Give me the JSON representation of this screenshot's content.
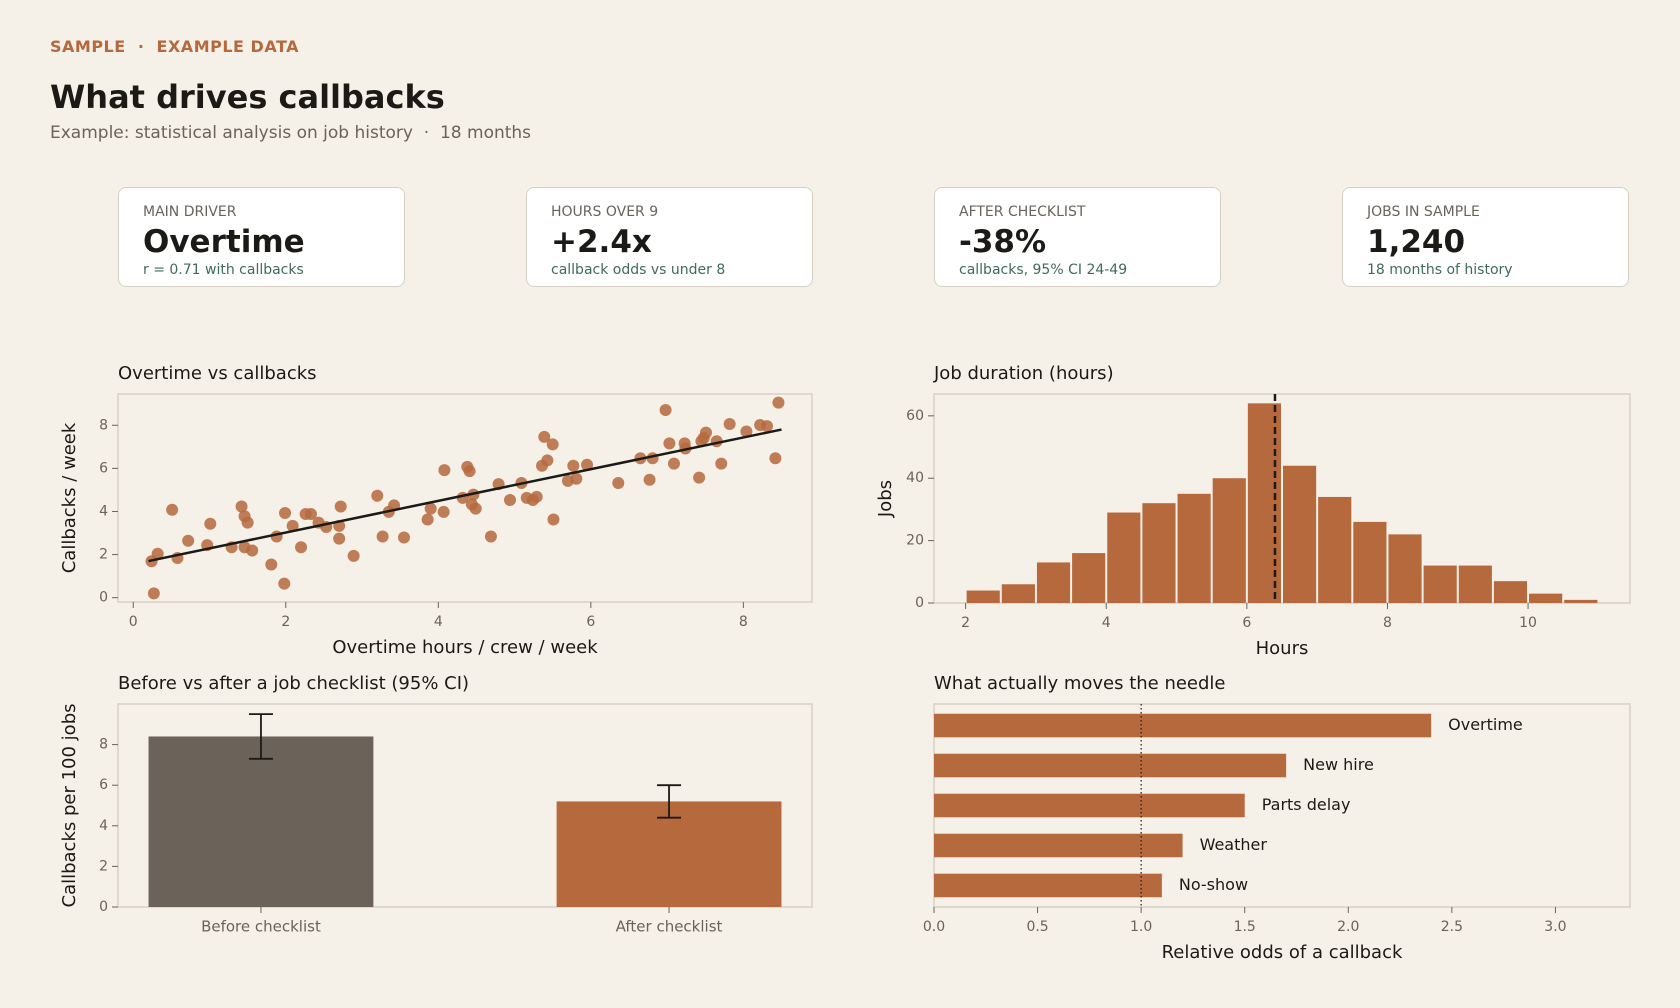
{
  "header": {
    "eyebrow": "SAMPLE  ·  EXAMPLE DATA",
    "title": "What drives callbacks",
    "subtitle": "Example: statistical analysis on job history  ·  18 months"
  },
  "cards": [
    {
      "label": "MAIN DRIVER",
      "value": "Overtime",
      "note": "r = 0.71 with callbacks"
    },
    {
      "label": "HOURS OVER 9",
      "value": "+2.4x",
      "note": "callback odds vs under 8"
    },
    {
      "label": "AFTER CHECKLIST",
      "value": "-38%",
      "note": "callbacks, 95% CI 24-49"
    },
    {
      "label": "JOBS IN SAMPLE",
      "value": "1,240",
      "note": "18 months of history"
    }
  ],
  "chart_data": [
    {
      "type": "scatter",
      "title": "Overtime vs callbacks",
      "xlabel": "Overtime hours / crew / week",
      "ylabel": "Callbacks / week",
      "color": "#b5693d",
      "x": [
        0.24,
        0.32,
        0.27,
        0.51,
        0.58,
        0.72,
        0.97,
        1.01,
        1.29,
        1.42,
        1.46,
        1.5,
        1.46,
        1.56,
        1.81,
        1.88,
        1.98,
        1.99,
        2.09,
        2.2,
        2.26,
        2.33,
        2.43,
        2.53,
        2.7,
        2.72,
        2.7,
        2.89,
        3.2,
        3.27,
        3.35,
        3.42,
        3.55,
        3.86,
        3.9,
        4.07,
        4.08,
        4.32,
        4.38,
        4.41,
        4.44,
        4.46,
        4.49,
        4.69,
        4.79,
        4.94,
        5.09,
        5.16,
        5.24,
        5.29,
        5.36,
        5.39,
        5.43,
        5.5,
        5.51,
        5.7,
        5.77,
        5.81,
        5.95,
        6.36,
        6.65,
        6.77,
        6.81,
        6.98,
        7.03,
        7.09,
        7.23,
        7.24,
        7.42,
        7.45,
        7.48,
        7.51,
        7.65,
        7.71,
        7.82,
        8.04,
        8.22,
        8.31,
        8.42,
        8.46
      ],
      "values": [
        1.69,
        2.04,
        0.2,
        4.08,
        1.84,
        2.64,
        2.44,
        3.43,
        2.34,
        4.23,
        3.78,
        3.48,
        2.34,
        2.19,
        1.54,
        2.84,
        0.65,
        3.93,
        3.33,
        2.34,
        3.88,
        3.88,
        3.48,
        3.28,
        3.33,
        4.23,
        2.74,
        1.94,
        4.73,
        2.84,
        3.98,
        4.28,
        2.79,
        3.63,
        4.13,
        3.98,
        5.92,
        4.63,
        6.07,
        5.87,
        4.33,
        4.78,
        4.13,
        2.84,
        5.27,
        4.53,
        5.32,
        4.63,
        4.53,
        4.68,
        6.12,
        7.46,
        6.37,
        7.11,
        3.63,
        5.42,
        6.12,
        5.52,
        6.17,
        5.32,
        6.47,
        5.47,
        6.47,
        8.71,
        7.16,
        6.22,
        7.16,
        6.92,
        5.57,
        7.26,
        7.41,
        7.66,
        7.26,
        6.22,
        8.06,
        7.71,
        8.01,
        7.96,
        6.47,
        9.05
      ],
      "trendline": {
        "x": [
          0.2,
          8.5
        ],
        "values": [
          1.7,
          7.8
        ]
      },
      "xlim": [
        -0.2,
        8.9
      ],
      "ylim": [
        -0.2,
        9.45
      ],
      "xticks": [
        0,
        2,
        4,
        6,
        8
      ],
      "yticks": [
        0,
        2,
        4,
        6,
        8
      ]
    },
    {
      "type": "histogram",
      "title": "Job duration (hours)",
      "xlabel": "Hours",
      "ylabel": "Jobs",
      "color": "#b5693d",
      "bins": [
        2,
        2.5,
        3,
        3.5,
        4,
        4.5,
        5,
        5.5,
        6,
        6.5,
        7,
        7.5,
        8,
        8.5,
        9,
        9.5,
        10,
        10.5,
        11
      ],
      "values": [
        4,
        6,
        13,
        16,
        29,
        32,
        35,
        40,
        64,
        44,
        34,
        26,
        22,
        12,
        12,
        7,
        3,
        1
      ],
      "vline": 6.4,
      "xlim": [
        1.55,
        11.45
      ],
      "ylim": [
        0,
        67
      ],
      "xticks": [
        2,
        4,
        6,
        8,
        10
      ],
      "yticks": [
        0,
        20,
        40,
        60
      ]
    },
    {
      "type": "bar",
      "title": "Before vs after a job checklist (95% CI)",
      "ylabel": "Callbacks per 100 jobs",
      "categories": [
        "Before checklist",
        "After checklist"
      ],
      "values": [
        8.4,
        5.2
      ],
      "errors": [
        1.1,
        0.8
      ],
      "colors": [
        "#6b625a",
        "#b5693d"
      ],
      "ylim": [
        0,
        10
      ],
      "yticks": [
        0,
        2,
        4,
        6,
        8
      ]
    },
    {
      "type": "barh",
      "title": "What actually moves the needle",
      "xlabel": "Relative odds of a callback",
      "color": "#b5693d",
      "categories": [
        "Overtime",
        "New hire",
        "Parts delay",
        "Weather",
        "No-show"
      ],
      "values": [
        2.4,
        1.7,
        1.5,
        1.2,
        1.1
      ],
      "reference": 1.0,
      "xlim": [
        0,
        3.36
      ],
      "xticks": [
        {
          "value": 0,
          "label": "0.0"
        },
        0.5,
        {
          "value": 1,
          "label": "1.0"
        },
        1.5,
        {
          "value": 2,
          "label": "2.0"
        },
        2.5,
        {
          "value": 3,
          "label": "3.0"
        }
      ]
    }
  ]
}
